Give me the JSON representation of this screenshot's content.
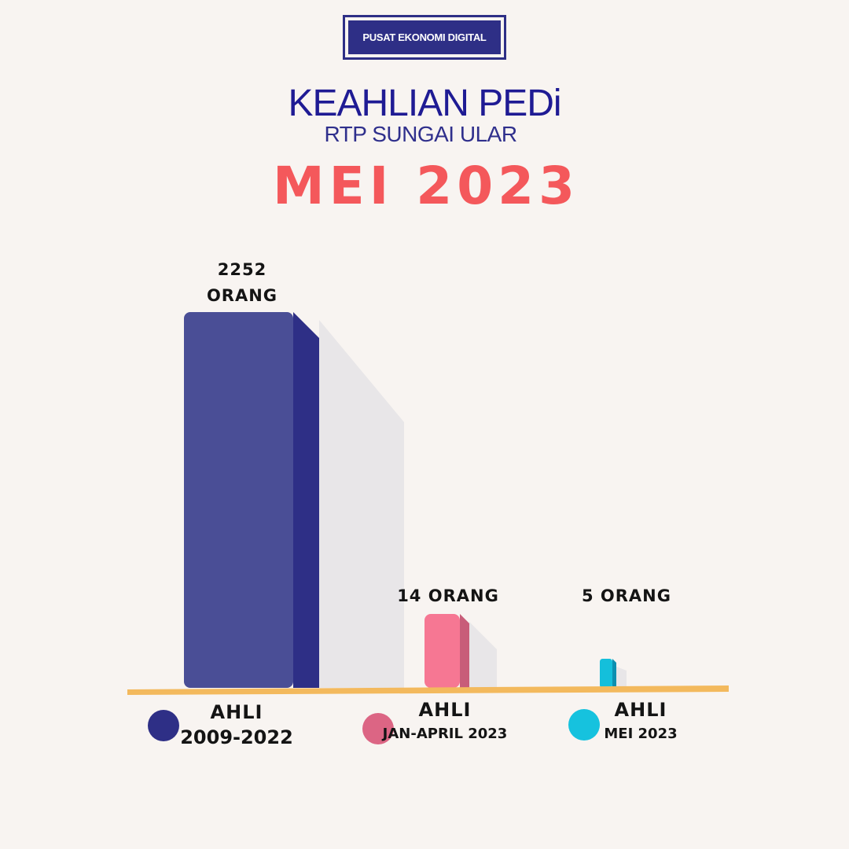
{
  "header": {
    "badge": "PUSAT EKONOMI DIGITAL",
    "title": "KEAHLIAN PEDi",
    "subtitle": "RTP SUNGAI ULAR",
    "period": "MEI 2023"
  },
  "chart_data": {
    "type": "bar",
    "categories": [
      "AHLI 2009-2022",
      "AHLI JAN-APRIL 2023",
      "AHLI MEI 2023"
    ],
    "values": [
      2252,
      14,
      5
    ],
    "value_labels": [
      [
        "2252",
        "ORANG"
      ],
      [
        "14  ORANG"
      ],
      [
        "5  ORANG"
      ]
    ],
    "legend": [
      {
        "line1": "AHLI",
        "line2": "2009-2022",
        "color": "#2e2f86"
      },
      {
        "line1": "AHLI",
        "line2": "JAN-APRIL 2023",
        "color": "#dc6584"
      },
      {
        "line1": "AHLI",
        "line2": "MEI 2023",
        "color": "#16c2de"
      }
    ],
    "colors": {
      "bar_front": [
        "#4a4e96",
        "#f67793",
        "#14bfdb"
      ],
      "bar_side": [
        "#2e2f86",
        "#c85d79",
        "#0c8fb0"
      ],
      "baseline": "#f3b95d",
      "shadow": "#e8e6e8"
    },
    "legend_position": "bottom"
  }
}
